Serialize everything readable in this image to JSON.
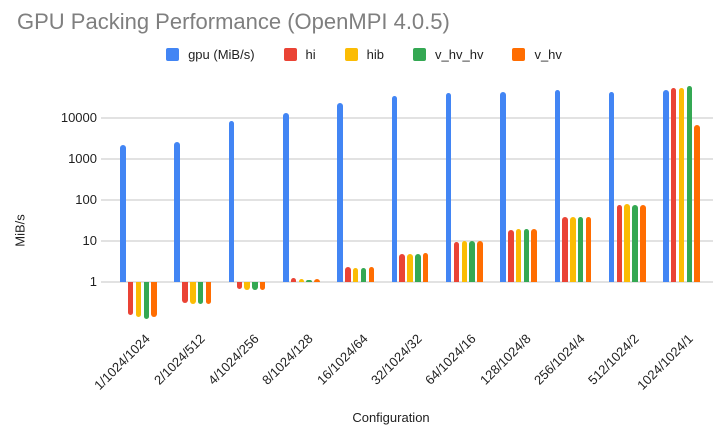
{
  "title": "GPU Packing Performance (OpenMPI 4.0.5)",
  "axes": {
    "y_title": "MiB/s",
    "x_title": "Configuration",
    "y_tick_labels": [
      "1",
      "10",
      "100",
      "1000",
      "10000"
    ]
  },
  "legend": [
    {
      "label": "gpu (MiB/s)",
      "color": "#4285F4"
    },
    {
      "label": "hi",
      "color": "#EA4335"
    },
    {
      "label": "hib",
      "color": "#FBBC04"
    },
    {
      "label": "v_hv_hv",
      "color": "#34A853"
    },
    {
      "label": "v_hv",
      "color": "#FF6D01"
    }
  ],
  "colors": {
    "title_text": "#7f7f7f",
    "axis_text": "#1f1f1f",
    "gridline": "#e2e2e2",
    "background": "#ffffff"
  },
  "chart_data": {
    "type": "bar",
    "title": "GPU Packing Performance (OpenMPI 4.0.5)",
    "xlabel": "Configuration",
    "ylabel": "MiB/s",
    "y_scale": "log10",
    "y_ticks": [
      1,
      10,
      100,
      1000,
      10000
    ],
    "ylim": [
      0.1,
      60000
    ],
    "grid": true,
    "legend_position": "top",
    "categories": [
      "1/1024/1024",
      "2/1024/512",
      "4/1024/256",
      "8/1024/128",
      "16/1024/64",
      "32/1024/32",
      "64/1024/16",
      "128/1024/8",
      "256/1024/4",
      "512/1024/2",
      "1024/1024/1"
    ],
    "series": [
      {
        "name": "gpu (MiB/s)",
        "color": "#4285F4",
        "values": [
          2150,
          2600,
          8300,
          13000,
          23000,
          33000,
          39000,
          43000,
          47000,
          43000,
          47000
        ]
      },
      {
        "name": "hi",
        "color": "#EA4335",
        "values": [
          0.16,
          0.32,
          0.68,
          1.3,
          2.35,
          5.0,
          9.8,
          19,
          38,
          76,
          54000
        ]
      },
      {
        "name": "hib",
        "color": "#FBBC04",
        "values": [
          0.145,
          0.3,
          0.66,
          1.2,
          2.25,
          5.0,
          10,
          20,
          39,
          78,
          54000
        ]
      },
      {
        "name": "v_hv_hv",
        "color": "#34A853",
        "values": [
          0.13,
          0.29,
          0.64,
          1.12,
          2.25,
          4.9,
          10,
          19.5,
          39,
          77,
          58000
        ]
      },
      {
        "name": "v_hv",
        "color": "#FF6D01",
        "values": [
          0.145,
          0.3,
          0.66,
          1.2,
          2.35,
          5.1,
          10.2,
          19.5,
          39.5,
          77,
          6600
        ]
      }
    ]
  }
}
